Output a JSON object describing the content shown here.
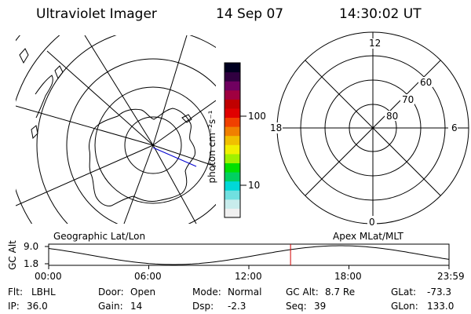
{
  "header": {
    "title": "Ultraviolet Imager",
    "date": "14 Sep 07",
    "time": "14:30:02 UT"
  },
  "colorbar": {
    "unit_label": "photon cm⁻²s⁻¹",
    "ticks": [
      {
        "label": "100",
        "value": 100
      },
      {
        "label": "10",
        "value": 10
      }
    ],
    "colors": [
      "#f0f0f0",
      "#c8ecec",
      "#70e0e0",
      "#00d8d8",
      "#00d060",
      "#00e000",
      "#a0f000",
      "#f0f000",
      "#f0c000",
      "#f08000",
      "#f04000",
      "#e00000",
      "#c00000",
      "#a00040",
      "#700060",
      "#300040",
      "#000020"
    ]
  },
  "left_map": {
    "label": "Geographic Lat/Lon"
  },
  "right_map": {
    "label": "Apex MLat/MLT",
    "mlt_labels": [
      "12",
      "18",
      "6",
      "0"
    ],
    "mlat_labels": [
      "60",
      "70",
      "80"
    ]
  },
  "alt_plot": {
    "ylabel": "GC Alt",
    "yticks": [
      "9.0",
      "1.8"
    ],
    "xticks": [
      "00:00",
      "06:00",
      "12:00",
      "18:00",
      "23:59"
    ],
    "current_time_hours": 14.5
  },
  "info": {
    "filter_label": "Flt:",
    "filter_value": "LBHL",
    "ip_label": "IP:",
    "ip_value": "36.0",
    "door_label": "Door:",
    "door_value": "Open",
    "gain_label": "Gain:",
    "gain_value": "14",
    "mode_label": "Mode:",
    "mode_value": "Normal",
    "dsp_label": "Dsp:",
    "dsp_value": "-2.3",
    "gcalt_label": "GC Alt:",
    "gcalt_value": "8.7 Re",
    "seq_label": "Seq:",
    "seq_value": "39",
    "glat_label": "GLat:",
    "glat_value": "-73.3",
    "glon_label": "GLon:",
    "glon_value": "133.0"
  }
}
